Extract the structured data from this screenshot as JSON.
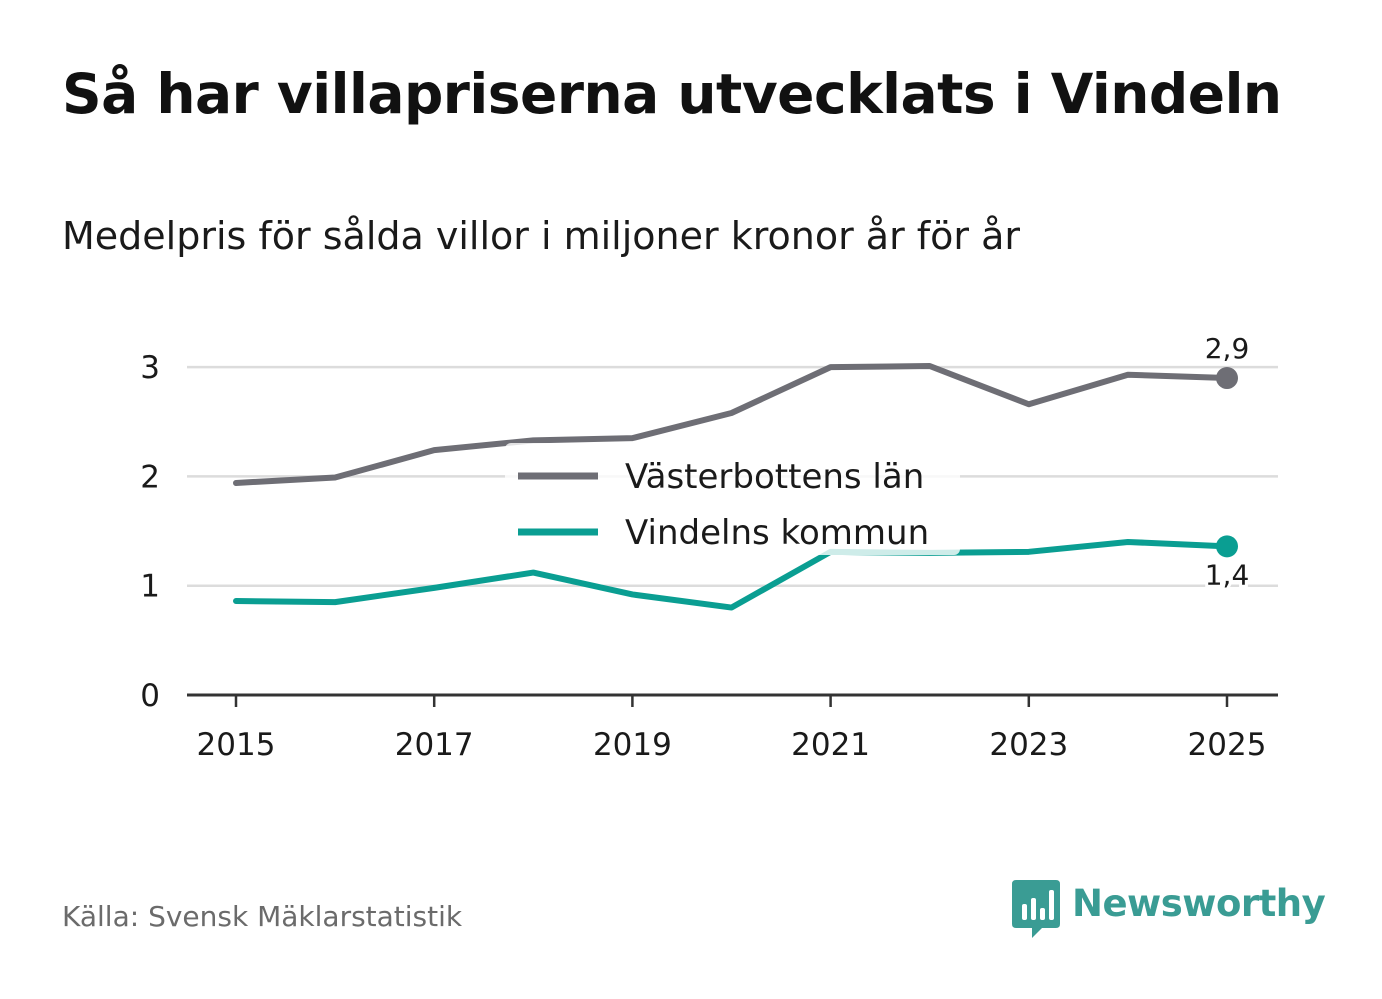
{
  "title": "Så har villapriserna utvecklats i Vindeln",
  "subtitle": "Medelpris för sålda villor i miljoner kronor år för år",
  "source": "Källa: Svensk Mäklarstatistik",
  "brand": {
    "name": "Newsworthy",
    "color": "#3a9c94",
    "icon": "newsworthy-logo-icon"
  },
  "colors": {
    "grid": "#dcdcdc",
    "axis": "#333333",
    "text": "#1a1a1a"
  },
  "chart_data": {
    "type": "line",
    "title": "Så har villapriserna utvecklats i Vindeln",
    "subtitle": "Medelpris för sålda villor i miljoner kronor år för år",
    "xlabel": "",
    "ylabel": "",
    "x": [
      2015,
      2016,
      2017,
      2018,
      2019,
      2020,
      2021,
      2022,
      2023,
      2024,
      2025
    ],
    "xticks": [
      "2015",
      "2017",
      "2019",
      "2021",
      "2023",
      "2025"
    ],
    "xlim": [
      2015,
      2025
    ],
    "ylim": [
      0,
      3.3
    ],
    "yticks": [
      "0",
      "1",
      "2",
      "3"
    ],
    "grid": true,
    "legend_position": "center",
    "series": [
      {
        "name": "Västerbottens län",
        "color": "#6e6e75",
        "values": [
          1.94,
          1.99,
          2.24,
          2.33,
          2.35,
          2.58,
          3.0,
          3.01,
          2.66,
          2.93,
          2.9
        ],
        "end_label": "2,9"
      },
      {
        "name": "Vindelns kommun",
        "color": "#0a9e92",
        "values": [
          0.86,
          0.85,
          0.98,
          1.12,
          0.92,
          0.8,
          1.31,
          1.3,
          1.31,
          1.4,
          1.36
        ],
        "end_label": "1,4"
      }
    ]
  }
}
